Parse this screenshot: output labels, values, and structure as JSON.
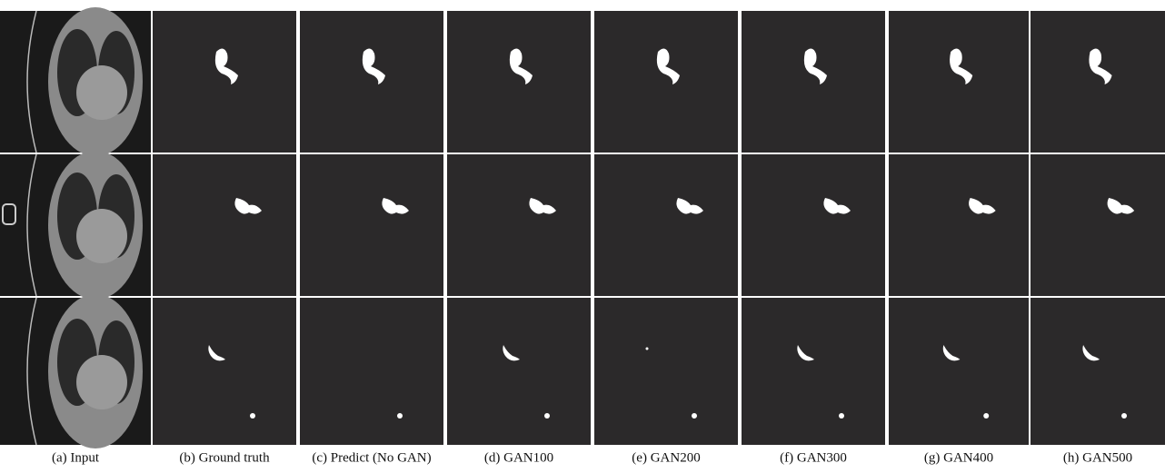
{
  "captions": [
    "(a) Input",
    "(b) Ground truth",
    "(c) Predict (No GAN)",
    "(d) GAN100",
    "(e) GAN200",
    "(f) GAN300",
    "(g) GAN400",
    "(h) GAN500"
  ]
}
